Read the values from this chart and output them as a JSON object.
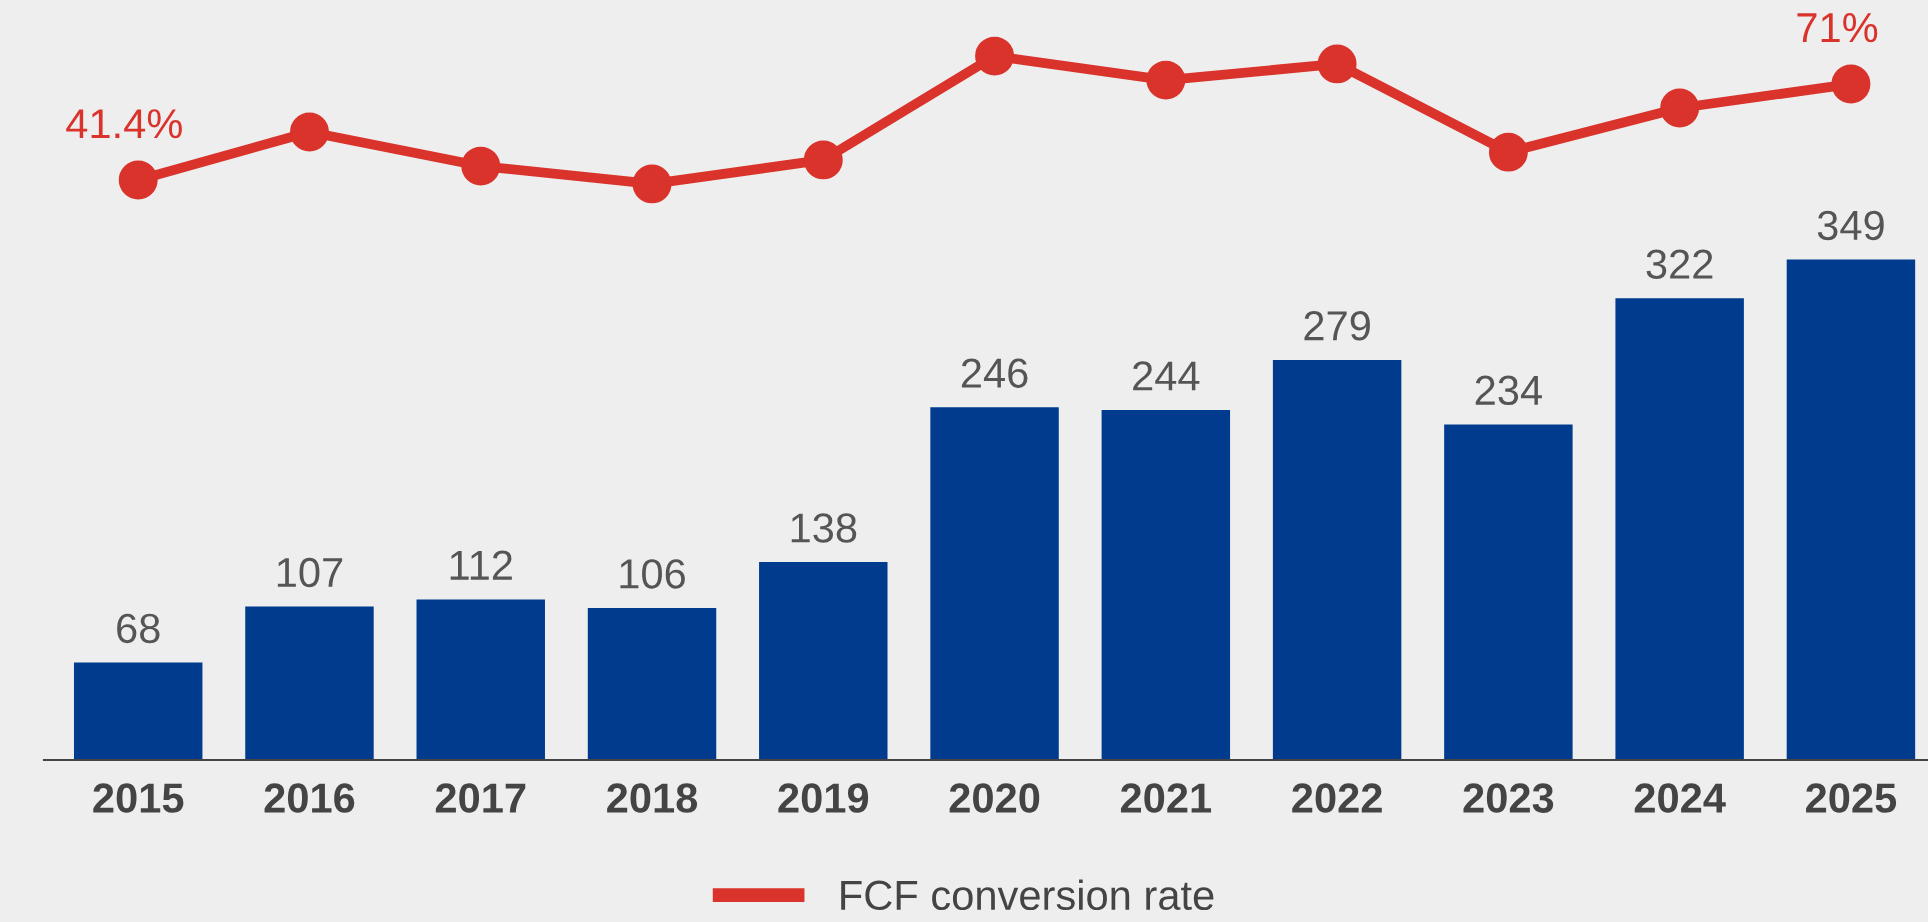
{
  "chart_data": {
    "type": "bar",
    "categories": [
      "2015",
      "2016",
      "2017",
      "2018",
      "2019",
      "2020",
      "2021",
      "2022",
      "2023",
      "2024",
      "2025"
    ],
    "series": [
      {
        "type": "bar",
        "color": "#003b8e",
        "values": [
          68,
          107,
          112,
          106,
          138,
          246,
          244,
          279,
          234,
          322,
          349
        ],
        "data_labels": true
      },
      {
        "type": "line",
        "name": "FCF conversion rate",
        "color": "#d9332b",
        "axis": "y2",
        "marker": "circle",
        "line_style": "solid",
        "values": [
          41.4,
          56.2,
          45.7,
          40.2,
          47.6,
          79.6,
          72.2,
          77.2,
          50.0,
          63.6,
          71
        ],
        "value_labels": [
          "41.4%",
          null,
          null,
          null,
          null,
          null,
          null,
          null,
          null,
          null,
          "71%"
        ]
      }
    ],
    "ylim": [
      0,
      530
    ],
    "y2lim": [
      -137.4,
      96.9
    ],
    "tick_labels": "x",
    "grid": false,
    "legend": "bottom"
  }
}
